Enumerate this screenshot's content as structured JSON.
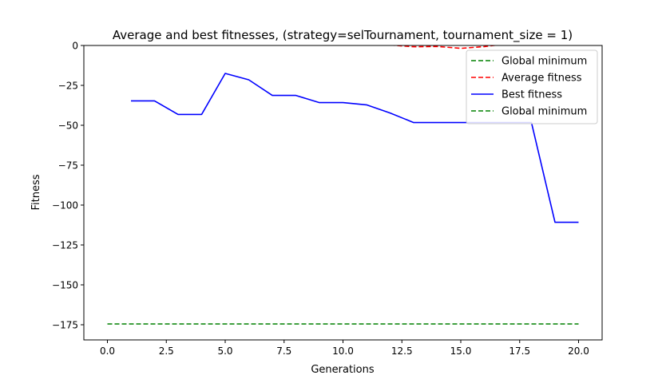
{
  "chart_data": {
    "type": "line",
    "title": "Average and best fitnesses, (strategy=selTournament, tournament_size = 1)",
    "xlabel": "Generations",
    "ylabel": "Fitness",
    "xlim": [
      -1.0,
      21.0
    ],
    "ylim": [
      -184.5,
      0
    ],
    "xticks": [
      0.0,
      2.5,
      5.0,
      7.5,
      10.0,
      12.5,
      15.0,
      17.5,
      20.0
    ],
    "xtick_labels": [
      "0.0",
      "2.5",
      "5.0",
      "7.5",
      "10.0",
      "12.5",
      "15.0",
      "17.5",
      "20.0"
    ],
    "yticks": [
      0,
      -25,
      -50,
      -75,
      -100,
      -125,
      -150,
      -175
    ],
    "ytick_labels": [
      "0",
      "−25",
      "−50",
      "−75",
      "−100",
      "−125",
      "−150",
      "−175"
    ],
    "grid": false,
    "legend_position": "top-right",
    "series": [
      {
        "name": "Global minimum",
        "color": "#008000",
        "dash": "dashed",
        "x": [
          0,
          20
        ],
        "y": [
          -174.5,
          -174.5
        ]
      },
      {
        "name": "Average fitness",
        "color": "#ff0000",
        "dash": "dashed",
        "x": [
          12,
          13,
          14,
          15,
          16,
          16.5
        ],
        "y": [
          0.3,
          -0.8,
          -0.6,
          -1.8,
          -0.7,
          0.2
        ]
      },
      {
        "name": "Best fitness",
        "color": "#0000ff",
        "dash": "solid",
        "x": [
          1,
          2,
          3,
          4,
          5,
          6,
          7,
          8,
          9,
          10,
          11,
          12,
          13,
          14,
          15,
          16,
          17,
          18,
          19,
          20
        ],
        "y": [
          -34.7,
          -34.7,
          -43.2,
          -43.2,
          -17.5,
          -21.5,
          -31.3,
          -31.3,
          -35.8,
          -35.8,
          -37.2,
          -42.3,
          -48.3,
          -48.3,
          -48.3,
          -48.3,
          -48.3,
          -48.3,
          -110.8,
          -110.8
        ]
      },
      {
        "name": "Global minimum",
        "color": "#008000",
        "dash": "dashed",
        "x": [],
        "y": []
      }
    ]
  }
}
